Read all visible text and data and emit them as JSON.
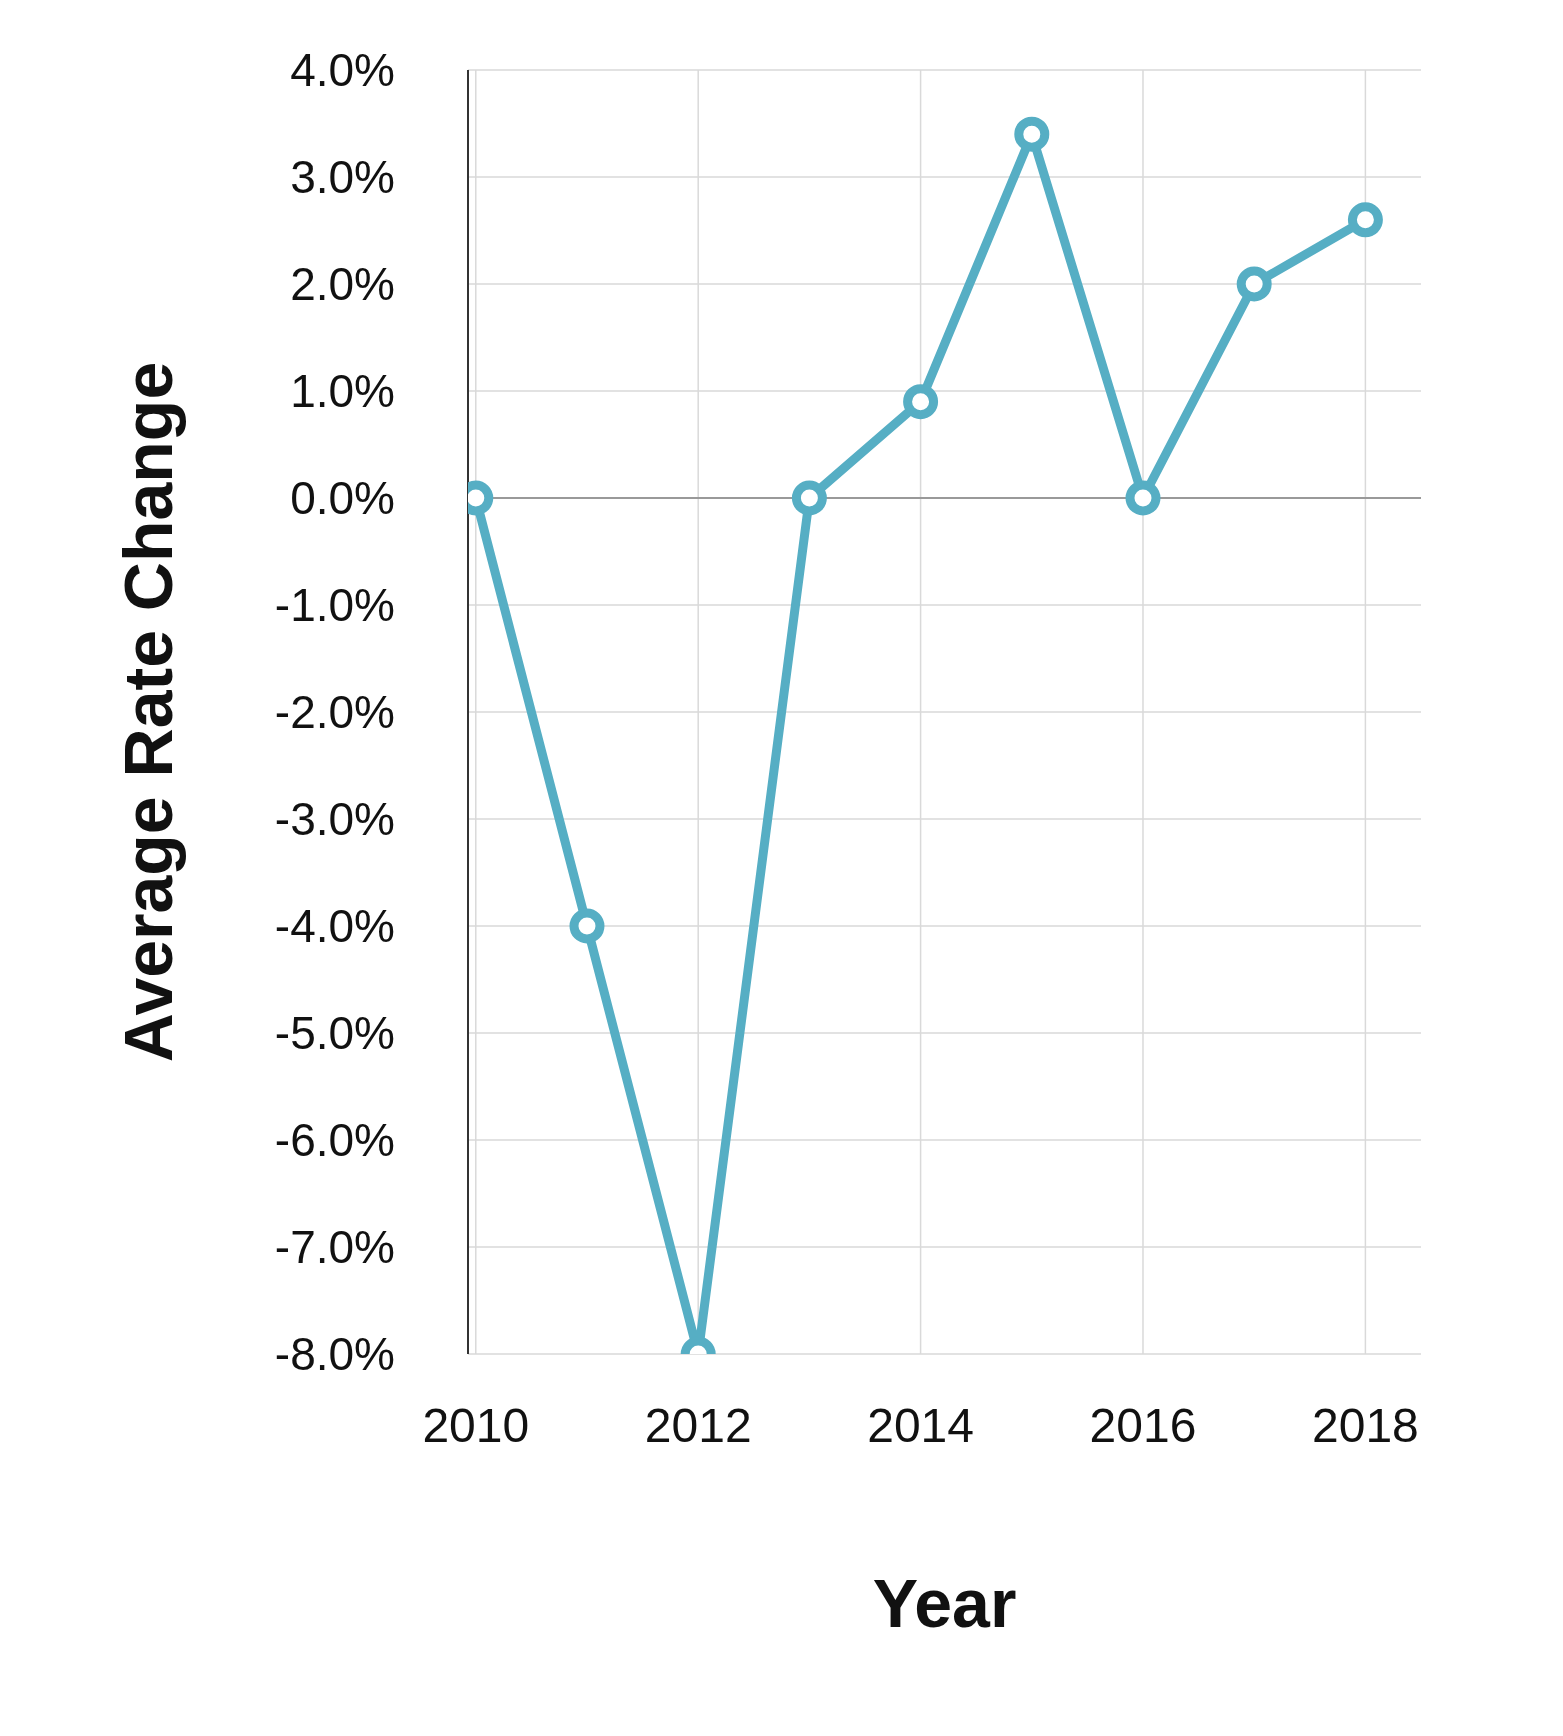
{
  "chart_data": {
    "type": "line",
    "xlabel": "Year",
    "ylabel": "Average Rate Change",
    "x": [
      2010,
      2011,
      2012,
      2013,
      2014,
      2015,
      2016,
      2017,
      2018
    ],
    "series": [
      {
        "color": "#56aec4",
        "values": [
          0.0,
          -4.0,
          -8.0,
          0.0,
          0.9,
          3.4,
          0.0,
          2.0,
          2.6
        ]
      }
    ],
    "xlim": [
      2009.93,
      2018.5
    ],
    "xticks": [
      2010,
      2012,
      2014,
      2016,
      2018
    ],
    "ylim": [
      -8,
      4
    ],
    "yticks": [
      {
        "value": -8,
        "label": "-8.0%"
      },
      {
        "value": -7,
        "label": "-7.0%"
      },
      {
        "value": -6,
        "label": "-6.0%"
      },
      {
        "value": -5,
        "label": "-5.0%"
      },
      {
        "value": -4,
        "label": "-4.0%"
      },
      {
        "value": -3,
        "label": "-3.0%"
      },
      {
        "value": -2,
        "label": "-2.0%"
      },
      {
        "value": -1,
        "label": "-1.0%"
      },
      {
        "value": 0,
        "label": "0.0%"
      },
      {
        "value": 1,
        "label": "1.0%"
      },
      {
        "value": 2,
        "label": "2.0%"
      },
      {
        "value": 3,
        "label": "3.0%"
      },
      {
        "value": 4,
        "label": "4.0%"
      }
    ],
    "ref_lines": [
      {
        "axis": "y",
        "value": 0,
        "color": "#999999"
      }
    ],
    "grid": true,
    "marker": "circle",
    "line_style": "solid"
  }
}
